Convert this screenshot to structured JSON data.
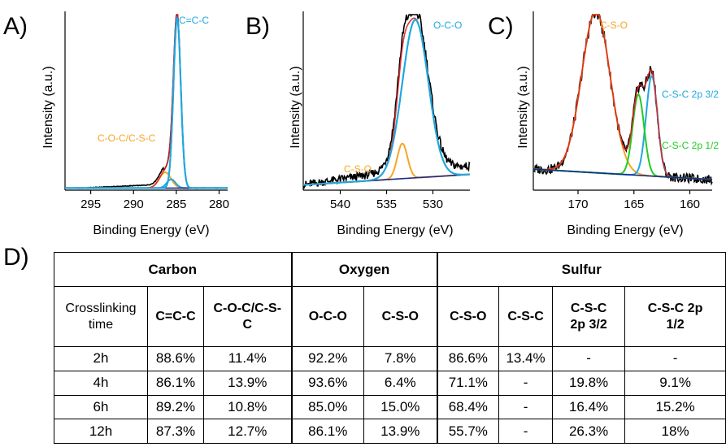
{
  "panels": [
    {
      "letter": "A)",
      "ylabel": "Intensity (a.u.)",
      "xlabel": "Binding Energy (eV)",
      "xlim": [
        298,
        279
      ],
      "xticks": [
        "295",
        "290",
        "285",
        "280"
      ],
      "annotations": [
        {
          "text": "C=C-C",
          "color": "#1fa8e0"
        },
        {
          "text": "C-O-C/C-S-C",
          "color": "#f5a623"
        }
      ]
    },
    {
      "letter": "B)",
      "ylabel": "Intensity (a.u.)",
      "xlabel": "Binding Energy (eV)",
      "xlim": [
        544,
        526
      ],
      "xticks": [
        "540",
        "535",
        "530"
      ],
      "annotations": [
        {
          "text": "O-C-O",
          "color": "#1fa8e0"
        },
        {
          "text": "C-S-O",
          "color": "#f5a623"
        }
      ]
    },
    {
      "letter": "C)",
      "ylabel": "Intensity (a.u.)",
      "xlabel": "Binding Energy (eV)",
      "xlim": [
        174,
        158
      ],
      "xticks": [
        "170",
        "165",
        "160"
      ],
      "annotations": [
        {
          "text": "C-S-O",
          "color": "#f5a623"
        },
        {
          "text": "C-S-C 2p 3/2",
          "color": "#1fa8e0"
        },
        {
          "text": "C-S-C 2p 1/2",
          "color": "#22cc22"
        }
      ]
    }
  ],
  "chart_data": [
    {
      "type": "line",
      "panel": "A",
      "xlabel": "Binding Energy (eV)",
      "ylabel": "Intensity (a.u.)",
      "xlim": [
        298,
        279
      ],
      "ylim": [
        0,
        1
      ],
      "series": [
        {
          "name": "C=C-C",
          "color": "#1fa8e0",
          "center": 284.9,
          "fwhm": 1.0,
          "height": 0.97
        },
        {
          "name": "C-O-C/C-S-C",
          "color": "#f5a623",
          "center": 286.3,
          "fwhm": 1.6,
          "height": 0.09
        },
        {
          "color": "#1fa8e0",
          "center": 285.6,
          "fwhm": 1.2,
          "height": 0.05
        },
        {
          "color": "#e02020",
          "role": "envelope"
        },
        {
          "color": "#000000",
          "role": "measured"
        },
        {
          "color": "#1a2a8a",
          "role": "background"
        }
      ]
    },
    {
      "type": "line",
      "panel": "B",
      "xlabel": "Binding Energy (eV)",
      "ylabel": "Intensity (a.u.)",
      "xlim": [
        544,
        526
      ],
      "ylim": [
        0,
        1
      ],
      "series": [
        {
          "name": "O-C-O",
          "color": "#1fa8e0",
          "center": 531.9,
          "fwhm": 3.3,
          "height": 0.9
        },
        {
          "name": "C-S-O",
          "color": "#f5a623",
          "center": 533.3,
          "fwhm": 1.3,
          "height": 0.2
        },
        {
          "color": "#e02020",
          "role": "envelope"
        },
        {
          "color": "#000000",
          "role": "measured"
        },
        {
          "color": "#1a2a8a",
          "role": "background"
        }
      ]
    },
    {
      "type": "line",
      "panel": "C",
      "xlabel": "Binding Energy (eV)",
      "ylabel": "Intensity (a.u.)",
      "xlim": [
        174,
        158
      ],
      "ylim": [
        0,
        1
      ],
      "series": [
        {
          "name": "C-S-O",
          "color": "#f5a623",
          "center": 168.4,
          "fwhm": 3.0,
          "height": 0.92
        },
        {
          "name": "C-S-C 2p 3/2",
          "color": "#1fa8e0",
          "center": 163.4,
          "fwhm": 1.2,
          "height": 0.57
        },
        {
          "name": "C-S-C 2p 1/2",
          "color": "#22cc22",
          "center": 164.6,
          "fwhm": 1.2,
          "height": 0.46
        },
        {
          "color": "#e02020",
          "role": "envelope"
        },
        {
          "color": "#000000",
          "role": "measured"
        },
        {
          "color": "#1a2a8a",
          "role": "background"
        }
      ]
    },
    {
      "type": "table",
      "panel": "D",
      "groups": [
        {
          "name": "Carbon",
          "span": 2
        },
        {
          "name": "Oxygen",
          "span": 2
        },
        {
          "name": "Sulfur",
          "span": 4
        }
      ],
      "columns": [
        "Crosslinking time",
        "C=C-C",
        "C-O-C/C-S-C",
        "O-C-O",
        "C-S-O",
        "C-S-O",
        "C-S-C",
        "C-S-C 2p 3/2",
        "C-S-C 2p 1/2"
      ],
      "rows": [
        [
          "2h",
          "88.6%",
          "11.4%",
          "92.2%",
          "7.8%",
          "86.6%",
          "13.4%",
          "-",
          "-"
        ],
        [
          "4h",
          "86.1%",
          "13.9%",
          "93.6%",
          "6.4%",
          "71.1%",
          "-",
          "19.8%",
          "9.1%"
        ],
        [
          "6h",
          "89.2%",
          "10.8%",
          "85.0%",
          "15.0%",
          "68.4%",
          "-",
          "16.4%",
          "15.2%"
        ],
        [
          "12h",
          "87.3%",
          "12.7%",
          "86.1%",
          "13.9%",
          "55.7%",
          "-",
          "26.3%",
          "18%"
        ]
      ]
    }
  ],
  "table": {
    "letter": "D)",
    "groups": [
      "Carbon",
      "Oxygen",
      "Sulfur"
    ],
    "header": {
      "time": [
        "Crosslinking",
        "time"
      ],
      "c1": "C=C-C",
      "c2": [
        "C-O-C/C-S-",
        "C"
      ],
      "o1": "O-C-O",
      "o2": "C-S-O",
      "s1": "C-S-O",
      "s2": "C-S-C",
      "s3": [
        "C-S-C",
        "2p 3/2"
      ],
      "s4": [
        "C-S-C 2p",
        "1/2"
      ]
    }
  }
}
